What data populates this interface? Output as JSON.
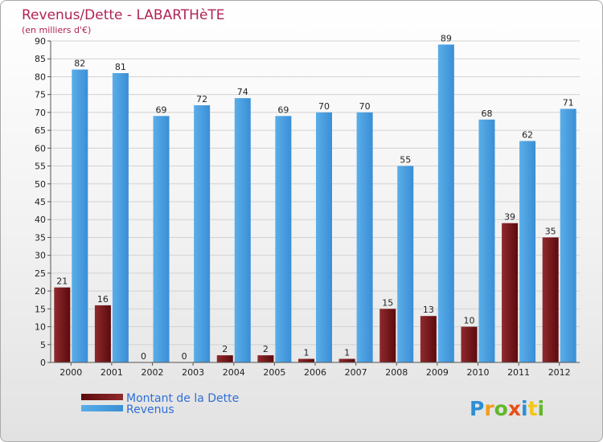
{
  "chart_data": {
    "type": "bar",
    "title": "Revenus/Dette - LABARTHèTE",
    "subtitle": "(en milliers d'€)",
    "categories": [
      "2000",
      "2001",
      "2002",
      "2003",
      "2004",
      "2005",
      "2006",
      "2007",
      "2008",
      "2009",
      "2010",
      "2011",
      "2012"
    ],
    "series": [
      {
        "name": "Montant de la Dette",
        "color": "#6b0f12",
        "values": [
          21,
          16,
          0,
          0,
          2,
          2,
          1,
          1,
          15,
          13,
          10,
          39,
          35
        ]
      },
      {
        "name": "Revenus",
        "color": "#3f95dc",
        "values": [
          82,
          81,
          69,
          72,
          74,
          69,
          70,
          70,
          55,
          89,
          68,
          62,
          71
        ]
      }
    ],
    "ylim": [
      0,
      90
    ],
    "yticks": [
      0,
      5,
      10,
      15,
      20,
      25,
      30,
      35,
      40,
      45,
      50,
      55,
      60,
      65,
      70,
      75,
      80,
      85,
      90
    ],
    "grid": true,
    "legend_position": "bottom-left"
  },
  "brand": {
    "letters": [
      {
        "ch": "P",
        "color": "#2c8fd6"
      },
      {
        "ch": "r",
        "color": "#f39c1f"
      },
      {
        "ch": "o",
        "color": "#63b72a"
      },
      {
        "ch": "x",
        "color": "#e84f1b"
      },
      {
        "ch": "i",
        "color": "#2c8fd6"
      },
      {
        "ch": "t",
        "color": "#f5c518"
      },
      {
        "ch": "i",
        "color": "#63b72a"
      }
    ]
  }
}
